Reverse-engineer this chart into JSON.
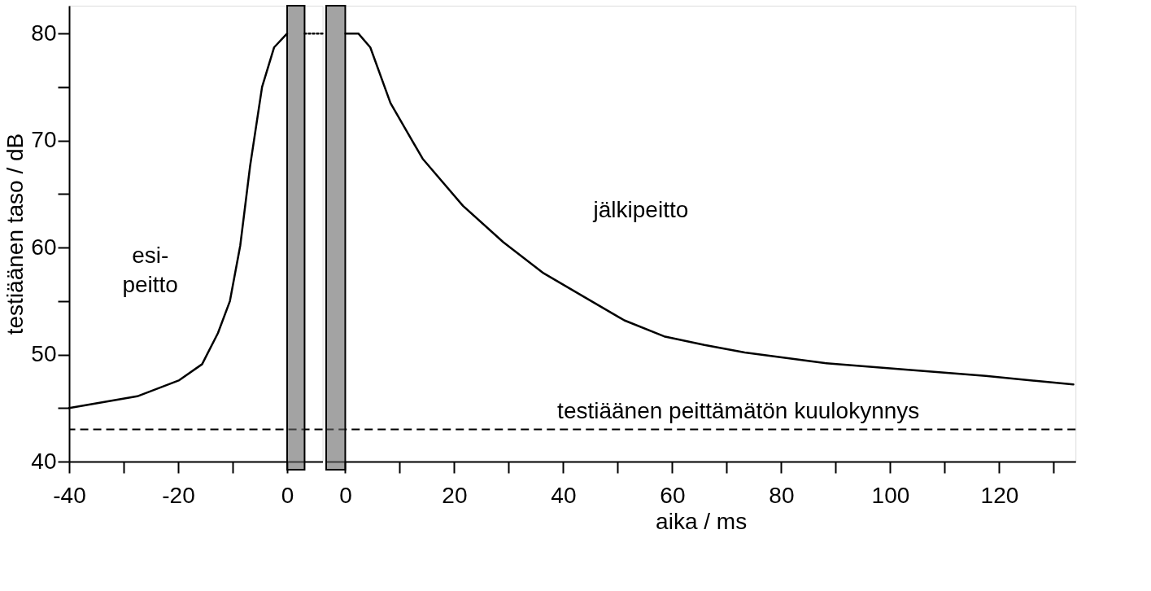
{
  "chart_data": [
    {
      "type": "line",
      "ylabel": "testiäänen taso / dB",
      "xlim": [
        -40,
        6.5
      ],
      "ylim": [
        40,
        82.6
      ],
      "xticks": [
        -40,
        {
          "value": -30,
          "label": null
        },
        -20,
        {
          "value": -10,
          "label": null
        },
        0
      ],
      "yticks": [
        40,
        {
          "value": 45,
          "label": null
        },
        50,
        {
          "value": 55,
          "label": null
        },
        60,
        {
          "value": 65,
          "label": null
        },
        70,
        {
          "value": 75,
          "label": null
        },
        80
      ],
      "series": [
        {
          "color": "#000000",
          "line_style": "solid",
          "x": [
            -40,
            -27.5,
            -19.8,
            -15.6,
            -12.7,
            -10.5,
            -8.6,
            -6.8,
            -4.6,
            -2.4,
            0
          ],
          "values": [
            45.0,
            46.1,
            47.6,
            49.1,
            52.0,
            55.0,
            60.2,
            67.6,
            75.0,
            78.7,
            80.0
          ]
        },
        {
          "color": "#000000",
          "line_style": "dotted",
          "x": [
            3.2,
            6.5
          ],
          "values": [
            80,
            80
          ]
        }
      ],
      "ref_lines": [
        {
          "axis": "y",
          "value": 43,
          "line_style": "dashed",
          "color": "#000000"
        }
      ],
      "bands": [
        {
          "axis": "x",
          "from": 0,
          "to": 3.2,
          "color": "#666666"
        }
      ],
      "annotations": [
        "esi-\npeitto"
      ],
      "marker": "none",
      "grid": false
    },
    {
      "type": "line",
      "xlabel": "aika / ms",
      "xlim": [
        -3.5,
        134
      ],
      "ylim": [
        40,
        82.6
      ],
      "tick_labels": "x",
      "xticks": [
        0,
        {
          "value": 10,
          "label": null
        },
        20,
        {
          "value": 30,
          "label": null
        },
        40,
        {
          "value": 50,
          "label": null
        },
        60,
        {
          "value": 70,
          "label": null
        },
        80,
        {
          "value": 90,
          "label": null
        },
        100,
        {
          "value": 110,
          "label": null
        },
        120,
        {
          "value": 130,
          "label": null
        }
      ],
      "series": [
        {
          "color": "#000000",
          "line_style": "solid",
          "x": [
            0,
            2.4,
            4.6,
            8.3,
            14.2,
            21.6,
            29,
            36.4,
            43.8,
            51.2,
            58.5,
            65.9,
            73.3,
            88,
            102.8,
            117.5,
            133.6
          ],
          "values": [
            80.0,
            80.0,
            78.7,
            73.5,
            68.3,
            63.9,
            60.5,
            57.6,
            55.4,
            53.2,
            51.7,
            50.9,
            50.2,
            49.2,
            48.6,
            48.0,
            47.2
          ]
        }
      ],
      "ref_lines": [
        {
          "axis": "y",
          "value": 43,
          "label": "testiäänen peittämätön kuulokynnys",
          "line_style": "dashed",
          "color": "#000000"
        }
      ],
      "bands": [
        {
          "axis": "x",
          "from": -3.5,
          "to": 0,
          "color": "#666666"
        }
      ],
      "annotations": [
        "jälkipeitto"
      ],
      "marker": "none",
      "grid": false
    }
  ]
}
